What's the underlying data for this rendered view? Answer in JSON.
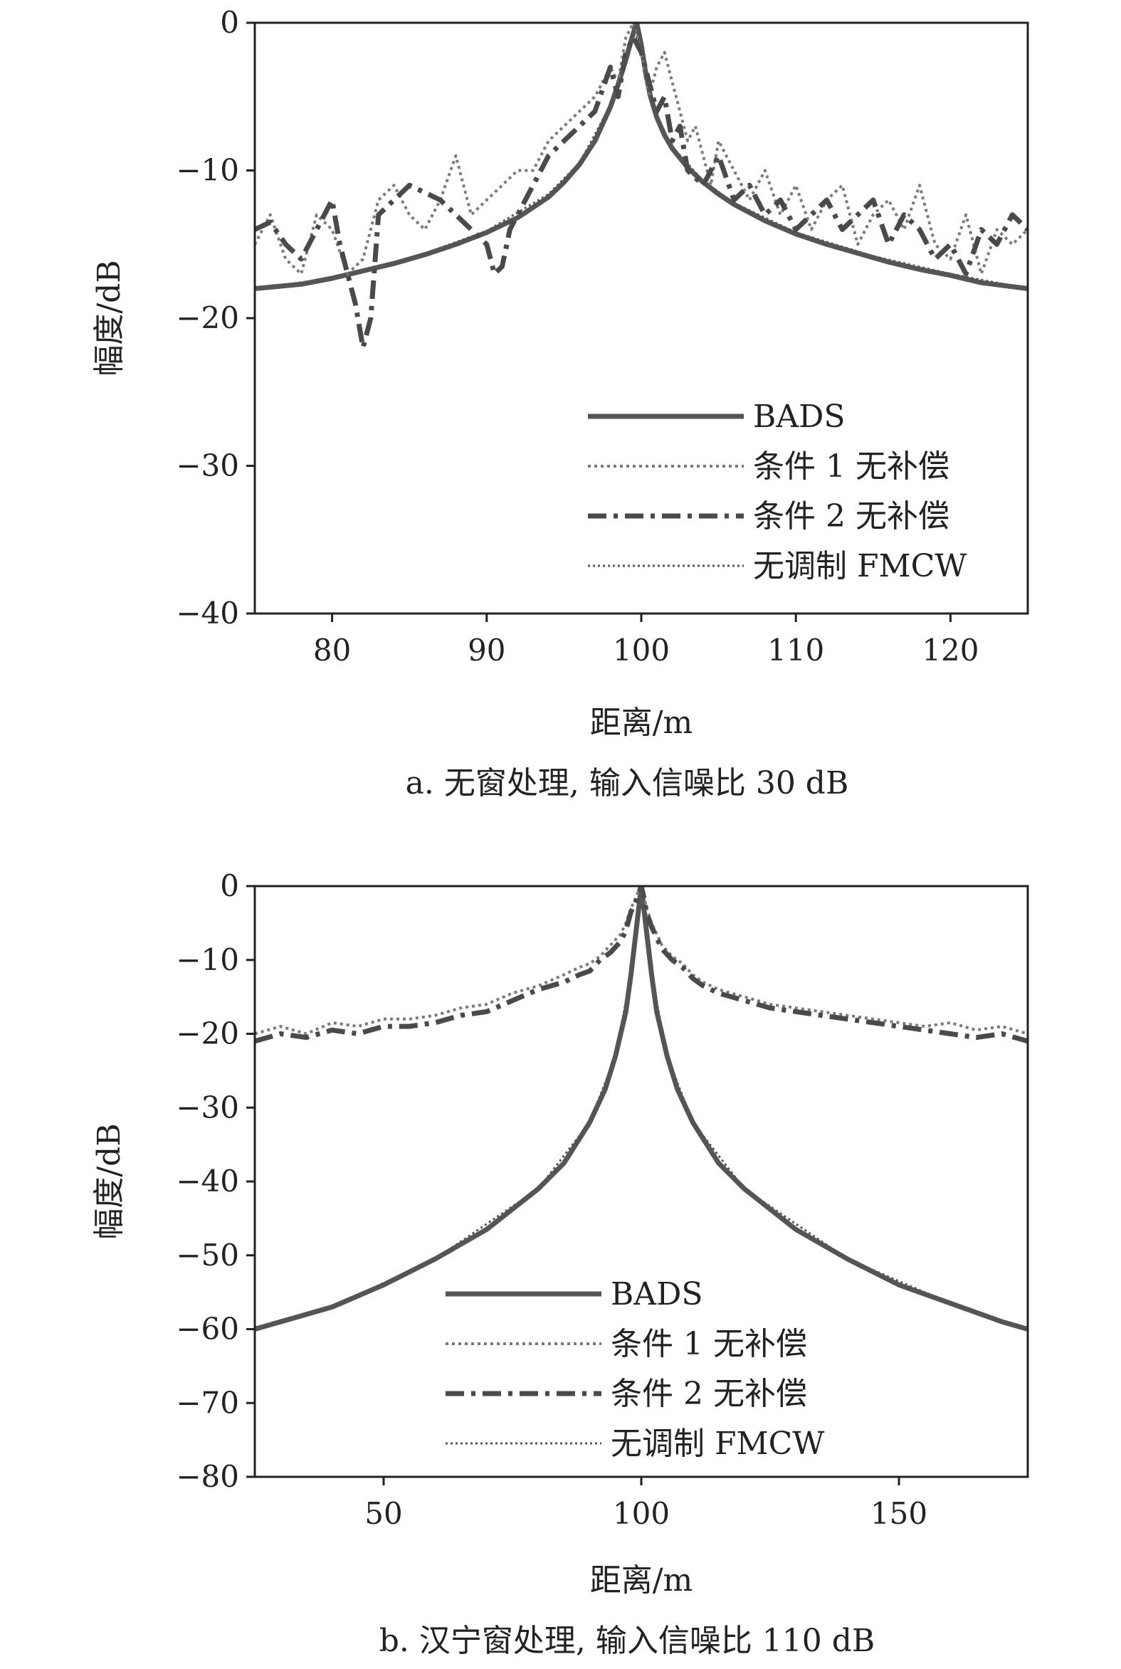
{
  "chart_data": [
    {
      "type": "line",
      "caption": "a. 无窗处理, 输入信噪比 30 dB",
      "xlabel": "距离/m",
      "ylabel": "幅度/dB",
      "xlim": [
        75,
        125
      ],
      "ylim": [
        -40,
        0
      ],
      "xticks": [
        80,
        90,
        100,
        110,
        120
      ],
      "yticks": [
        0,
        -10,
        -20,
        -30,
        -40
      ],
      "ytick_labels": [
        "0",
        "−10",
        "−20",
        "−30",
        "−40"
      ],
      "legend_position": "bottom-right",
      "colors": {
        "axis": "#222222",
        "bads": "#555555",
        "cond1": "#7a7a7a",
        "cond2": "#4a4a4a",
        "fmcw": "#555555"
      },
      "series": [
        {
          "name": "BADS",
          "style": "solid",
          "x": [
            75,
            78,
            80,
            82,
            84,
            86,
            88,
            90,
            92,
            94,
            95,
            96,
            97,
            98,
            98.5,
            99,
            99.4,
            99.7,
            100,
            100.3,
            100.6,
            101,
            101.5,
            102,
            103,
            104,
            105,
            106,
            108,
            110,
            112,
            114,
            116,
            118,
            120,
            122,
            125
          ],
          "y": [
            -18,
            -17.7,
            -17.3,
            -16.8,
            -16.3,
            -15.7,
            -15.0,
            -14.2,
            -13.2,
            -11.8,
            -10.8,
            -9.6,
            -8.0,
            -5.7,
            -4.2,
            -2.5,
            -1.0,
            0,
            -1.5,
            -3.5,
            -5.0,
            -6.4,
            -7.6,
            -8.5,
            -9.8,
            -10.8,
            -11.6,
            -12.3,
            -13.4,
            -14.3,
            -15.0,
            -15.6,
            -16.2,
            -16.7,
            -17.1,
            -17.6,
            -18.0
          ]
        },
        {
          "name": "条件 1 无补偿",
          "style": "dotted",
          "x": [
            75,
            76,
            77,
            78,
            79,
            80,
            81,
            82,
            83,
            84,
            85,
            86,
            87,
            88,
            89,
            90,
            91,
            92,
            93,
            94,
            95,
            96,
            97,
            98,
            98.5,
            99,
            99.5,
            100,
            100.5,
            101,
            101.5,
            102,
            102.5,
            103,
            103.5,
            104,
            104.5,
            105,
            106,
            107,
            108,
            109,
            110,
            111,
            112,
            113,
            114,
            115,
            116,
            117,
            118,
            119,
            120,
            121,
            122,
            123,
            124,
            125
          ],
          "y": [
            -15,
            -13,
            -16,
            -17,
            -13,
            -14,
            -17,
            -16,
            -12,
            -11,
            -13,
            -14,
            -12,
            -9,
            -13,
            -12,
            -11,
            -10,
            -10,
            -8,
            -7,
            -6,
            -5,
            -3,
            -4,
            -1,
            0,
            -2,
            -5,
            -3,
            -2,
            -4,
            -6,
            -8,
            -7,
            -9,
            -11,
            -8,
            -10,
            -12,
            -10,
            -13,
            -11,
            -14,
            -12,
            -11,
            -15,
            -13,
            -12,
            -14,
            -11,
            -15,
            -16,
            -13,
            -17,
            -14,
            -15,
            -14
          ]
        },
        {
          "name": "条件 2 无补偿",
          "style": "dashdot",
          "x": [
            75,
            76,
            77,
            78,
            79,
            80,
            80.5,
            81,
            81.5,
            82,
            82.5,
            83,
            84,
            85,
            86,
            87,
            88,
            89,
            90,
            90.5,
            91,
            91.5,
            92,
            93,
            94,
            95,
            96,
            97,
            98,
            98.5,
            99,
            99.5,
            100,
            100.5,
            101,
            101.5,
            102,
            102.5,
            103,
            104,
            105,
            106,
            107,
            108,
            109,
            110,
            111,
            112,
            113,
            114,
            115,
            116,
            117,
            118,
            119,
            120,
            121,
            122,
            123,
            124,
            125
          ],
          "y": [
            -14,
            -13.5,
            -15,
            -16,
            -14,
            -12,
            -15,
            -17,
            -19,
            -22,
            -20,
            -13,
            -12,
            -11,
            -11.5,
            -12,
            -13,
            -14,
            -15,
            -17,
            -16.5,
            -14,
            -13,
            -11,
            -9,
            -8,
            -7,
            -6,
            -3,
            -5,
            -2,
            -1,
            -2,
            -4,
            -6,
            -5,
            -8,
            -7,
            -10,
            -11,
            -9,
            -12,
            -11,
            -13,
            -12,
            -14,
            -13,
            -12,
            -14,
            -13,
            -12,
            -15,
            -13,
            -14,
            -16,
            -15,
            -17,
            -14,
            -15,
            -13,
            -14
          ]
        },
        {
          "name": "无调制 FMCW",
          "style": "fine-dotted",
          "x": [
            75,
            80,
            85,
            90,
            94,
            96,
            98,
            99,
            99.7,
            100.3,
            101,
            102,
            104,
            106,
            110,
            115,
            120,
            125
          ],
          "y": [
            -18,
            -17.3,
            -16,
            -14.1,
            -11.6,
            -9.5,
            -5.6,
            -2.4,
            0,
            -3.3,
            -6.3,
            -8.4,
            -10.7,
            -12.2,
            -14.2,
            -15.8,
            -17.0,
            -18.0
          ]
        }
      ]
    },
    {
      "type": "line",
      "caption": "b. 汉宁窗处理, 输入信噪比 110 dB",
      "xlabel": "距离/m",
      "ylabel": "幅度/dB",
      "xlim": [
        25,
        175
      ],
      "ylim": [
        -80,
        0
      ],
      "xticks": [
        50,
        100,
        150
      ],
      "yticks": [
        0,
        -10,
        -20,
        -30,
        -40,
        -50,
        -60,
        -70,
        -80
      ],
      "ytick_labels": [
        "0",
        "−10",
        "−20",
        "−30",
        "−40",
        "−50",
        "−60",
        "−70",
        "−80"
      ],
      "legend_position": "bottom-center",
      "colors": {
        "axis": "#222222",
        "bads": "#555555",
        "cond1": "#7a7a7a",
        "cond2": "#4a4a4a",
        "fmcw": "#555555"
      },
      "series": [
        {
          "name": "BADS",
          "style": "solid",
          "x": [
            25,
            30,
            40,
            50,
            60,
            70,
            80,
            85,
            90,
            93,
            95,
            97,
            98,
            99,
            99.5,
            100,
            100.5,
            101,
            102,
            103,
            105,
            107,
            110,
            115,
            120,
            130,
            140,
            150,
            160,
            170,
            175
          ],
          "y": [
            -60,
            -59,
            -57,
            -54,
            -50.5,
            -46.5,
            -41,
            -37.5,
            -32,
            -27.5,
            -23,
            -17,
            -12,
            -6,
            -3,
            0,
            -3,
            -6,
            -12,
            -17,
            -23,
            -27.5,
            -32,
            -37.5,
            -41,
            -46.5,
            -50.5,
            -54,
            -56.5,
            -59,
            -60
          ]
        },
        {
          "name": "条件 1 无补偿",
          "style": "dotted",
          "x": [
            25,
            30,
            35,
            40,
            45,
            50,
            55,
            60,
            65,
            70,
            75,
            80,
            85,
            88,
            90,
            92,
            94,
            96,
            97,
            98,
            99,
            99.5,
            100,
            100.5,
            101,
            102,
            103,
            104,
            106,
            108,
            110,
            112,
            115,
            120,
            125,
            130,
            135,
            140,
            145,
            150,
            155,
            160,
            165,
            170,
            175
          ],
          "y": [
            -20,
            -19,
            -20,
            -18.5,
            -19,
            -18,
            -18,
            -17.5,
            -16.5,
            -16,
            -14.5,
            -13.5,
            -12,
            -11,
            -10.5,
            -9.5,
            -8,
            -6.5,
            -5,
            -3,
            -1.5,
            -0.5,
            0,
            -1,
            -3,
            -5,
            -6.5,
            -8,
            -9.5,
            -10.5,
            -12,
            -13,
            -14,
            -15,
            -16,
            -16.5,
            -17,
            -17.5,
            -18,
            -18.5,
            -19,
            -18.5,
            -19.5,
            -19,
            -20
          ]
        },
        {
          "name": "条件 2 无补偿",
          "style": "dashdot",
          "x": [
            25,
            30,
            35,
            40,
            45,
            50,
            55,
            60,
            65,
            70,
            75,
            80,
            85,
            88,
            90,
            92,
            94,
            96,
            97,
            98,
            99,
            99.5,
            100,
            100.5,
            101,
            102,
            103,
            104,
            106,
            108,
            110,
            112,
            115,
            120,
            125,
            130,
            135,
            140,
            145,
            150,
            155,
            160,
            165,
            170,
            175
          ],
          "y": [
            -21,
            -20,
            -20.5,
            -19.5,
            -20,
            -19,
            -19,
            -18.5,
            -17.5,
            -17,
            -15.5,
            -14,
            -13,
            -12,
            -11.5,
            -10,
            -9,
            -7.5,
            -6,
            -3.5,
            -2,
            -1,
            0,
            -1.5,
            -3.5,
            -5.5,
            -7,
            -8.5,
            -10,
            -11,
            -12.5,
            -13.5,
            -14.5,
            -15.5,
            -16.5,
            -17,
            -17.5,
            -18,
            -18.5,
            -19,
            -19.5,
            -20,
            -20.5,
            -20,
            -21
          ]
        },
        {
          "name": "无调制 FMCW",
          "style": "fine-dotted",
          "x": [
            25,
            40,
            60,
            80,
            90,
            95,
            98,
            99.5,
            100,
            100.5,
            102,
            105,
            110,
            120,
            140,
            160,
            175
          ],
          "y": [
            -60,
            -57,
            -50.5,
            -41,
            -32,
            -23,
            -12,
            -3,
            0,
            -3,
            -12,
            -23,
            -32,
            -41,
            -50.5,
            -56.5,
            -60
          ]
        }
      ]
    }
  ]
}
